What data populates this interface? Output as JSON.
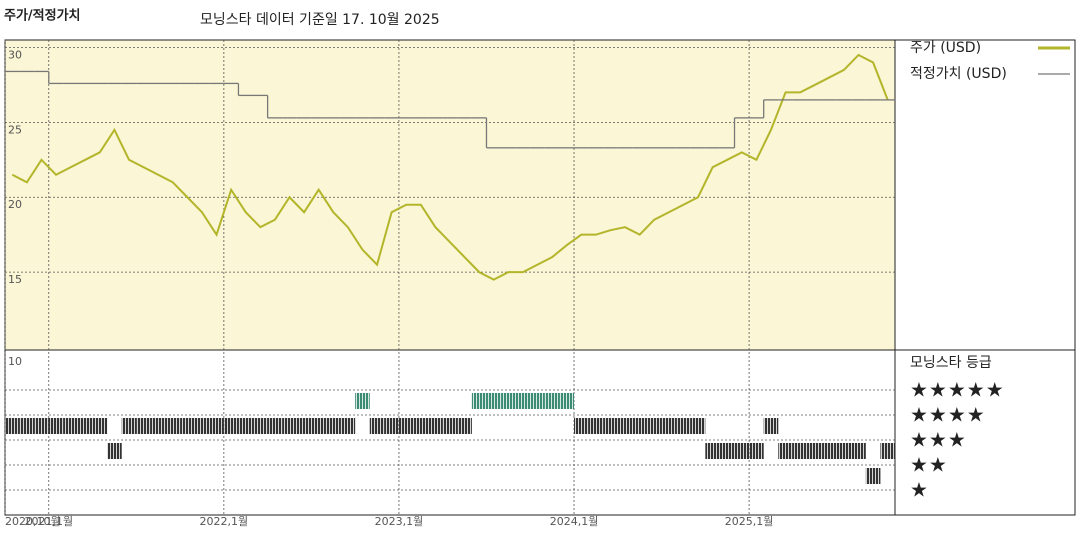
{
  "chart_data": [
    {
      "type": "line",
      "title": "주가/적정가치",
      "subtitle": "모닝스타 데이터 기준일 17. 10월 2025",
      "x": [
        "2020-10",
        "2020-11",
        "2020-12",
        "2021-01",
        "2021-02",
        "2021-03",
        "2021-04",
        "2021-05",
        "2021-06",
        "2021-07",
        "2021-08",
        "2021-09",
        "2021-10",
        "2021-11",
        "2021-12",
        "2022-01",
        "2022-02",
        "2022-03",
        "2022-04",
        "2022-05",
        "2022-06",
        "2022-07",
        "2022-08",
        "2022-09",
        "2022-10",
        "2022-11",
        "2022-12",
        "2023-01",
        "2023-02",
        "2023-03",
        "2023-04",
        "2023-05",
        "2023-06",
        "2023-07",
        "2023-08",
        "2023-09",
        "2023-10",
        "2023-11",
        "2023-12",
        "2024-01",
        "2024-02",
        "2024-03",
        "2024-04",
        "2024-05",
        "2024-06",
        "2024-07",
        "2024-08",
        "2024-09",
        "2024-10",
        "2024-11",
        "2024-12",
        "2025-01",
        "2025-02",
        "2025-03",
        "2025-04",
        "2025-05",
        "2025-06",
        "2025-07",
        "2025-08",
        "2025-09",
        "2025-10"
      ],
      "series": [
        {
          "name": "주가 (USD)",
          "color": "#b3b52a",
          "step": false,
          "values": [
            21.5,
            21,
            22.5,
            21.5,
            22,
            22.5,
            23,
            24.5,
            22.5,
            22,
            21.5,
            21,
            20,
            19,
            17.5,
            20.5,
            19,
            18,
            18.5,
            20,
            19,
            20.5,
            19,
            18,
            16.5,
            15.5,
            19,
            19.5,
            19.5,
            18,
            17,
            16,
            15,
            14.5,
            15,
            15,
            15.5,
            16,
            16.8,
            17.5,
            17.5,
            17.8,
            18,
            17.5,
            18.5,
            19,
            19.5,
            20,
            22,
            22.5,
            23,
            22.5,
            24.5,
            27,
            27,
            27.5,
            28,
            28.5,
            29.5,
            29,
            26.5
          ]
        },
        {
          "name": "적정가치 (USD)",
          "color": "#777777",
          "step": true,
          "values": [
            28.4,
            28.4,
            28.4,
            27.6,
            27.6,
            27.6,
            27.6,
            27.6,
            27.6,
            27.6,
            27.6,
            27.6,
            27.6,
            27.6,
            27.6,
            27.6,
            26.8,
            26.8,
            25.3,
            25.3,
            25.3,
            25.3,
            25.3,
            25.3,
            25.3,
            25.3,
            25.3,
            25.3,
            25.3,
            25.3,
            25.3,
            25.3,
            25.3,
            23.3,
            23.3,
            23.3,
            23.3,
            23.3,
            23.3,
            23.3,
            23.3,
            23.3,
            23.3,
            23.3,
            23.3,
            23.3,
            23.3,
            23.3,
            23.3,
            23.3,
            25.3,
            25.3,
            26.5,
            26.5,
            26.5,
            26.5,
            26.5,
            26.5,
            26.5,
            26.5,
            26.5
          ]
        }
      ],
      "xlim": [
        "2020-10",
        "2025-11"
      ],
      "xticks": [
        {
          "value": "2020-10",
          "label": "2020,10월"
        },
        {
          "value": "2021-01",
          "label": "2021,1월"
        },
        {
          "value": "2022-01",
          "label": "2022,1월"
        },
        {
          "value": "2023-01",
          "label": "2023,1월"
        },
        {
          "value": "2024-01",
          "label": "2024,1월"
        },
        {
          "value": "2025-01",
          "label": "2025,1월"
        }
      ],
      "ylim": [
        9.8,
        30.5
      ],
      "yticks": [
        15,
        20,
        25,
        30
      ],
      "grid": true,
      "background": "#fbf6d5"
    },
    {
      "type": "rating",
      "title": "모닝스타 등급",
      "yticks": [
        10
      ],
      "star_labels": [
        "★★★★★",
        "★★★★",
        "★★★",
        "★★",
        "★"
      ],
      "color": "#333333",
      "top_color": "#3c8c74",
      "values": [
        4,
        4,
        4,
        4,
        4,
        4,
        4,
        3,
        4,
        4,
        4,
        4,
        4,
        4,
        4,
        4,
        4,
        4,
        4,
        4,
        4,
        4,
        4,
        4,
        5,
        4,
        4,
        4,
        4,
        4,
        4,
        4,
        5,
        5,
        5,
        5,
        5,
        5,
        5,
        4,
        4,
        4,
        4,
        4,
        4,
        4,
        4,
        4,
        3,
        3,
        3,
        3,
        4,
        3,
        3,
        3,
        3,
        3,
        3,
        2,
        3
      ]
    }
  ]
}
